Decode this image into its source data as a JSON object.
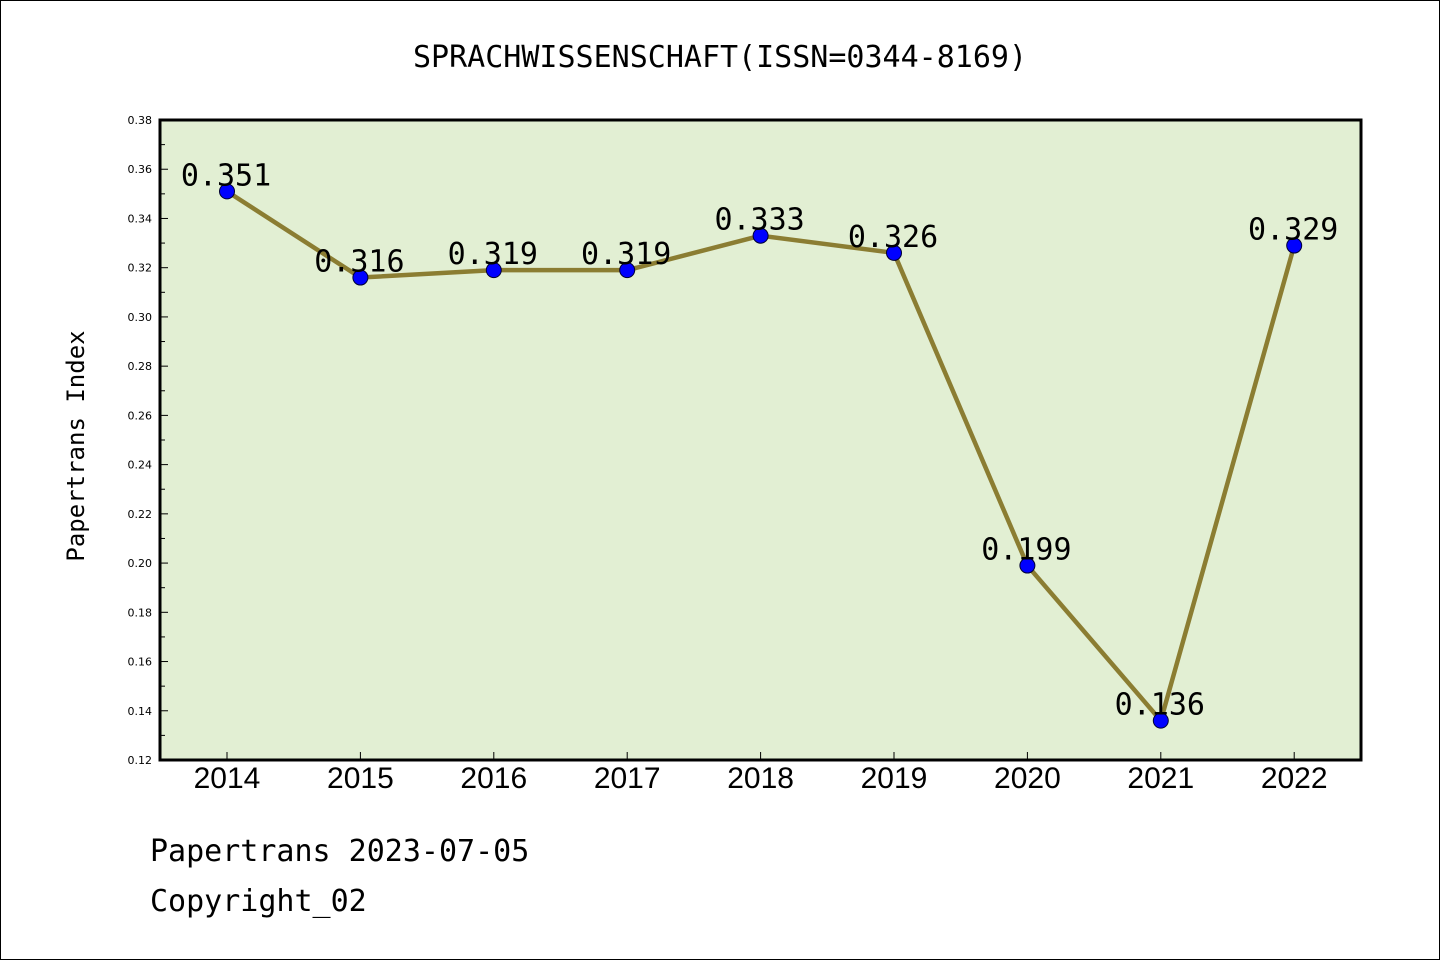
{
  "chart_data": {
    "type": "line",
    "title": "SPRACHWISSENSCHAFT(ISSN=0344-8169)",
    "ylabel": "Papertrans Index",
    "xlabel": "",
    "categories": [
      "2014",
      "2015",
      "2016",
      "2017",
      "2018",
      "2019",
      "2020",
      "2021",
      "2022"
    ],
    "series": [
      {
        "values": [
          0.351,
          0.316,
          0.319,
          0.319,
          0.333,
          0.326,
          0.199,
          0.136,
          0.329
        ],
        "labels": [
          "0.351",
          "0.316",
          "0.319",
          "0.319",
          "0.333",
          "0.326",
          "0.199",
          "0.136",
          "0.329"
        ]
      }
    ],
    "ylim": [
      0.12,
      0.38
    ],
    "yticks": [
      "0.12",
      "0.14",
      "0.16",
      "0.18",
      "0.20",
      "0.22",
      "0.24",
      "0.26",
      "0.28",
      "0.30",
      "0.32",
      "0.34",
      "0.36",
      "0.38"
    ],
    "grid": false,
    "colors": {
      "plot_background": "#e2efd3",
      "line": "#8b7d32",
      "marker": "#0000ff"
    }
  },
  "footer": {
    "source": "Papertrans 2023-07-05",
    "copyright": "Copyright_02"
  }
}
